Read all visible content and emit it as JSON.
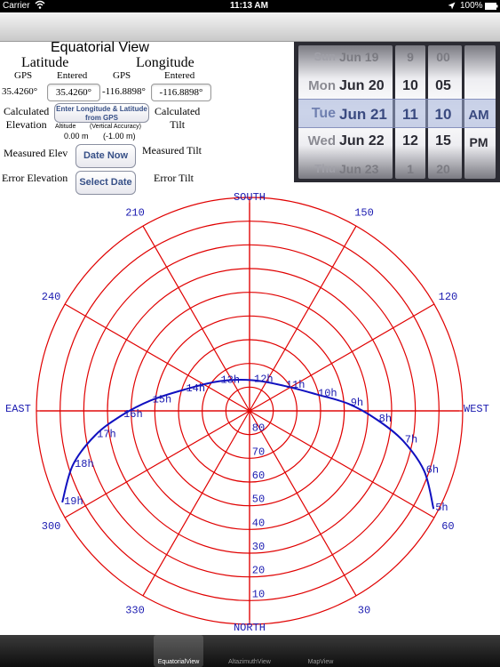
{
  "status": {
    "carrier": "Carrier",
    "time": "11:13 AM",
    "battery": "100%",
    "wifi_icon": "wifi-icon",
    "location_icon": "location-arrow-icon",
    "battery_icon": "battery-icon"
  },
  "title": "Equatorial View",
  "latitude": {
    "heading": "Latitude",
    "gps_label": "GPS",
    "entered_label": "Entered",
    "gps_value": "35.4260°",
    "entered_value": "35.4260°"
  },
  "longitude": {
    "heading": "Longitude",
    "gps_label": "GPS",
    "entered_label": "Entered",
    "gps_value": "-116.8898°",
    "entered_value": "-116.8898°"
  },
  "enter_gps_button": "Enter Longitude & Latitude from GPS",
  "calc_elevation": {
    "line1": "Calculated",
    "line2": "Elevation"
  },
  "calc_tilt": {
    "line1": "Calculated",
    "line2": "Tilt"
  },
  "altitude": {
    "label": "Altitude",
    "accuracy_label": "(Vertical Accuracy)",
    "value": "0.00 m",
    "accuracy_value": "(-1.00 m)"
  },
  "measured_elev": "Measured Elev",
  "measured_tilt": "Measured Tilt",
  "error_elevation": "Error Elevation",
  "error_tilt": "Error Tilt",
  "date_now_button": "Date Now",
  "select_date_button": "Select Date",
  "date_picker": {
    "days": [
      {
        "weekday": "Sun",
        "date": "Jun 19"
      },
      {
        "weekday": "Mon",
        "date": "Jun 20"
      },
      {
        "weekday": "Tue",
        "date": "Jun 21"
      },
      {
        "weekday": "Wed",
        "date": "Jun 22"
      },
      {
        "weekday": "Thu",
        "date": "Jun 23"
      }
    ],
    "hours": [
      "9",
      "10",
      "11",
      "12",
      "1"
    ],
    "minutes": [
      "00",
      "05",
      "10",
      "15",
      "20"
    ],
    "ampm": [
      "",
      "",
      "AM",
      "PM",
      ""
    ],
    "selected": {
      "weekday": "Tue",
      "date": "Jun 21",
      "hour": "11",
      "minute": "10",
      "ampm": "AM"
    }
  },
  "chart_data": {
    "type": "polar",
    "directions": {
      "top": "SOUTH",
      "bottom": "NORTH",
      "left": "EAST",
      "right": "WEST"
    },
    "azimuth_labels": [
      {
        "azimuth": 30,
        "text": "30"
      },
      {
        "azimuth": 60,
        "text": "60"
      },
      {
        "azimuth": 120,
        "text": "120"
      },
      {
        "azimuth": 150,
        "text": "150"
      },
      {
        "azimuth": 210,
        "text": "210"
      },
      {
        "azimuth": 240,
        "text": "240"
      },
      {
        "azimuth": 300,
        "text": "300"
      },
      {
        "azimuth": 330,
        "text": "330"
      }
    ],
    "elevation_rings": [
      10,
      20,
      30,
      40,
      50,
      60,
      70,
      80
    ],
    "elevation_labels": [
      "10",
      "20",
      "30",
      "40",
      "50",
      "60",
      "70",
      "80"
    ],
    "sun_path": [
      {
        "label": "5h",
        "azimuth": 62,
        "elevation": 2
      },
      {
        "label": "6h",
        "azimuth": 71,
        "elevation": 12
      },
      {
        "label": "7h",
        "azimuth": 79,
        "elevation": 24
      },
      {
        "label": "8h",
        "azimuth": 86,
        "elevation": 36
      },
      {
        "label": "9h",
        "azimuth": 94,
        "elevation": 48
      },
      {
        "label": "10h",
        "azimuth": 104,
        "elevation": 61
      },
      {
        "label": "11h",
        "azimuth": 126,
        "elevation": 72
      },
      {
        "label": "12h",
        "azimuth": 175,
        "elevation": 77
      },
      {
        "label": "13h",
        "azimuth": 226,
        "elevation": 72
      },
      {
        "label": "14h",
        "azimuth": 252,
        "elevation": 61
      },
      {
        "label": "15h",
        "azimuth": 264,
        "elevation": 48
      },
      {
        "label": "16h",
        "azimuth": 272,
        "elevation": 36
      },
      {
        "label": "17h",
        "azimuth": 279,
        "elevation": 24
      },
      {
        "label": "18h",
        "azimuth": 287,
        "elevation": 12
      },
      {
        "label": "19h",
        "azimuth": 296,
        "elevation": 2
      }
    ],
    "grid_color": "#e00000",
    "path_color": "#1010c0",
    "label_color": "#1a1ab0"
  },
  "tabs": [
    {
      "label": "EquatorialView",
      "active": true
    },
    {
      "label": "AltazimuthView",
      "active": false
    },
    {
      "label": "MapView",
      "active": false
    }
  ]
}
